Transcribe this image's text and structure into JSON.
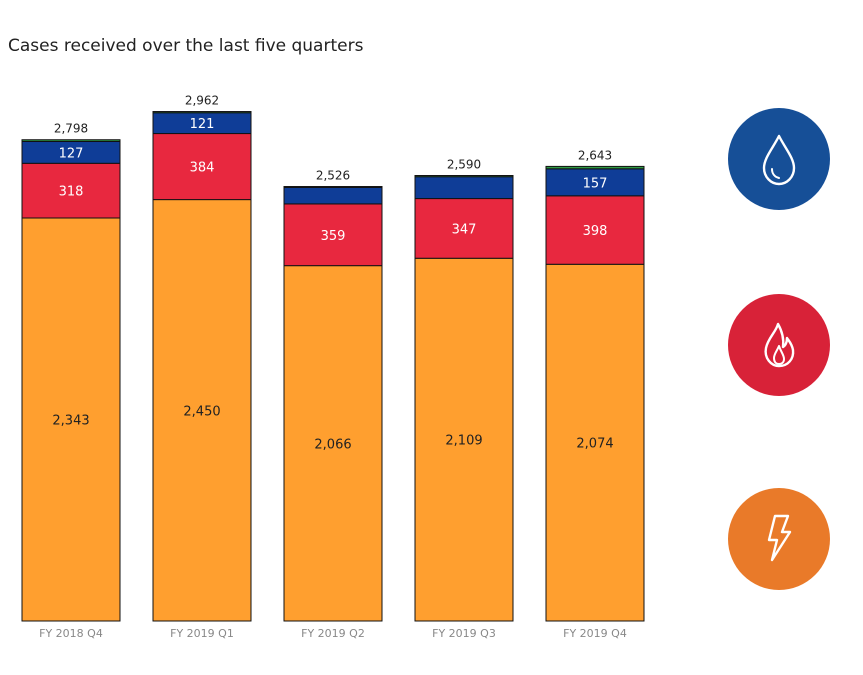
{
  "chart_data": {
    "type": "bar",
    "stacked": true,
    "title": "Cases received over the last five quarters",
    "categories": [
      "FY 2018 Q4",
      "FY 2019 Q1",
      "FY 2019 Q2",
      "FY 2019 Q3",
      "FY 2019 Q4"
    ],
    "totals": [
      2798,
      2962,
      2526,
      2590,
      2643
    ],
    "total_labels": [
      "2,798",
      "2,962",
      "2,526",
      "2,590",
      "2,643"
    ],
    "series": [
      {
        "color": "#FF9F2F",
        "values": [
          2343,
          2450,
          2066,
          2109,
          2074
        ],
        "labels": [
          "2,343",
          "2,450",
          "2,066",
          "2,109",
          "2,074"
        ],
        "label_color": "#222222"
      },
      {
        "color": "#E8283F",
        "values": [
          318,
          384,
          359,
          347,
          398
        ],
        "labels": [
          "318",
          "384",
          "359",
          "347",
          "398"
        ],
        "label_color": "#ffffff"
      },
      {
        "color": "#0F3D97",
        "values": [
          127,
          121,
          96,
          127,
          157
        ],
        "labels": [
          "127",
          "121",
          "",
          "",
          "157"
        ],
        "label_color": "#ffffff"
      },
      {
        "color": "#2E9A45",
        "values": [
          10,
          7,
          5,
          7,
          14
        ],
        "labels": [
          "",
          "",
          "",
          "",
          ""
        ],
        "label_color": "#ffffff"
      }
    ],
    "ylim": [
      0,
      3000
    ],
    "grid": false,
    "legend": "none"
  },
  "icons": [
    {
      "name": "water-drop-icon",
      "color": "#164F97"
    },
    {
      "name": "flame-icon",
      "color": "#D82238"
    },
    {
      "name": "lightning-bolt-icon",
      "color": "#E97A29"
    }
  ]
}
